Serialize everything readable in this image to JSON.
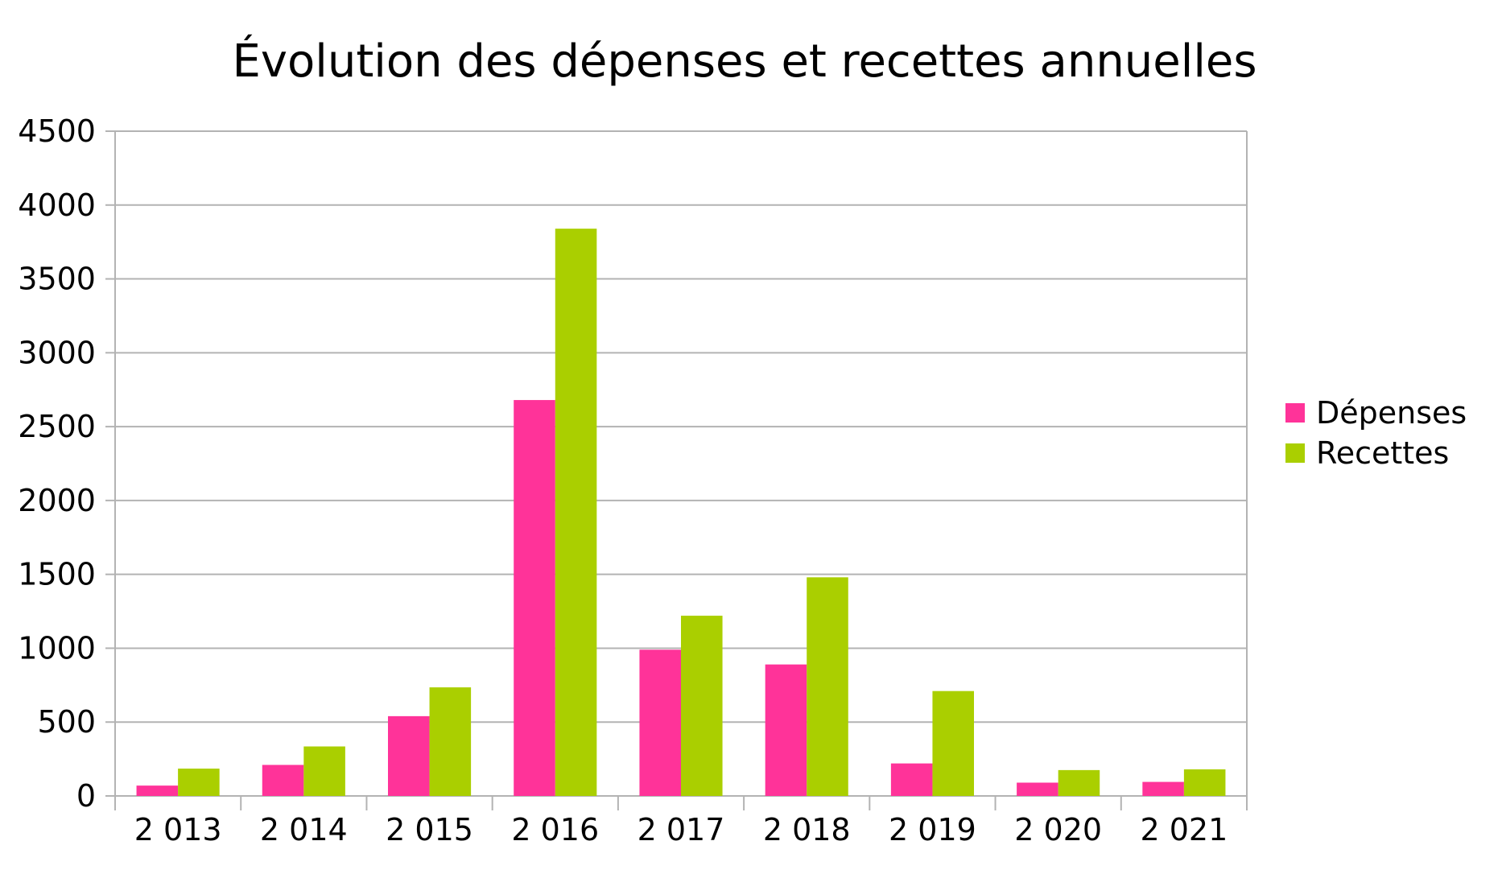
{
  "chart_data": {
    "type": "bar",
    "title": "Évolution des dépenses et recettes annuelles",
    "xlabel": "",
    "ylabel": "",
    "categories": [
      "2 013",
      "2 014",
      "2 015",
      "2 016",
      "2 017",
      "2 018",
      "2 019",
      "2 020",
      "2 021"
    ],
    "series": [
      {
        "name": "Dépenses",
        "color": "#ff3399",
        "values": [
          70,
          210,
          540,
          2680,
          990,
          890,
          220,
          90,
          95
        ]
      },
      {
        "name": "Recettes",
        "color": "#aacf00",
        "values": [
          185,
          335,
          735,
          3840,
          1220,
          1480,
          710,
          175,
          180
        ]
      }
    ],
    "ylim": [
      0,
      4500
    ],
    "yticks": [
      0,
      500,
      1000,
      1500,
      2000,
      2500,
      3000,
      3500,
      4000,
      4500
    ],
    "grid": true,
    "legend": "right"
  }
}
